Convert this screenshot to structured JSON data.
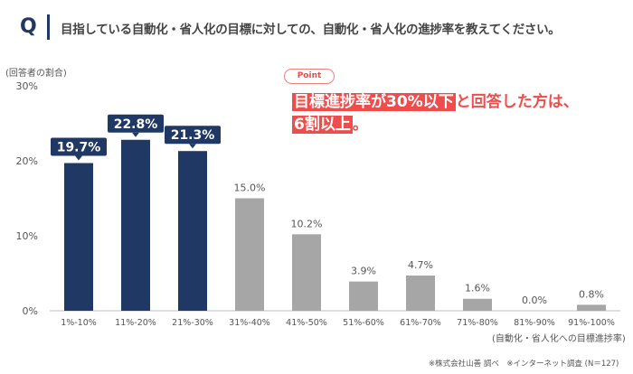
{
  "header": {
    "q_label": "Q",
    "question": "目指している自動化・省人化の目標に対しての、自動化・省人化の進捗率を教えてください。"
  },
  "point": {
    "label": "Point",
    "highlight1": "目標進捗率が30%以下",
    "text1": "と回答した方は、",
    "highlight2": "6割以上",
    "text2": "。"
  },
  "source": "※株式会社山善 調べ　※インターネット調査 (N＝127)",
  "colors": {
    "highlight": "#1f3864",
    "normal": "#a6a6a6",
    "accent": "#ef4c4c"
  },
  "chart_data": {
    "type": "bar",
    "ylabel": "(回答者の割合)",
    "xlabel": "(自動化・省人化への目標進捗率)",
    "ylim": [
      0,
      30
    ],
    "yticks": [
      "0%",
      "10%",
      "20%",
      "30%"
    ],
    "categories": [
      "1%-10%",
      "11%-20%",
      "21%-30%",
      "31%-40%",
      "41%-50%",
      "51%-60%",
      "61%-70%",
      "71%-80%",
      "81%-90%",
      "91%-100%"
    ],
    "values": [
      19.7,
      22.8,
      21.3,
      15.0,
      10.2,
      3.9,
      4.7,
      1.6,
      0.0,
      0.8
    ],
    "labels": [
      "19.7%",
      "22.8%",
      "21.3%",
      "15.0%",
      "10.2%",
      "3.9%",
      "4.7%",
      "1.6%",
      "0.0%",
      "0.8%"
    ],
    "highlighted": [
      0,
      1,
      2
    ],
    "grid": false
  }
}
